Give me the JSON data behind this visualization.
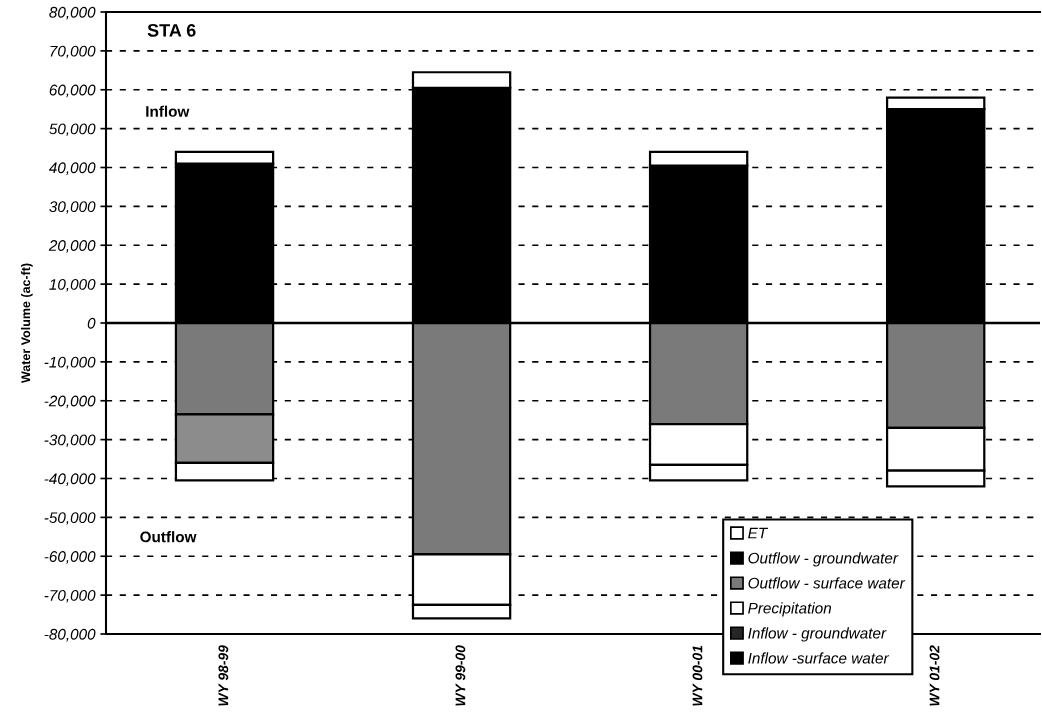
{
  "chart_data": {
    "type": "bar",
    "title": "STA 6",
    "ylabel": "Water Volume (ac-ft)",
    "annotations": [
      "Inflow",
      "Outflow"
    ],
    "categories": [
      "WY 98-99",
      "WY 99-00",
      "WY 00-01",
      "WY 01-02"
    ],
    "stacked": true,
    "series": [
      {
        "name": "Inflow -surface water",
        "color": "#000000",
        "values": [
          41000,
          60500,
          40500,
          55000
        ]
      },
      {
        "name": "Inflow - groundwater",
        "color": "#262626",
        "values": [
          null,
          null,
          null,
          null
        ]
      },
      {
        "name": "Precipitation",
        "color": "#ffffff",
        "values": [
          3000,
          4000,
          3500,
          3000
        ]
      },
      {
        "name": "Outflow - surface water",
        "color": "#7a7a7a",
        "values": [
          -23500,
          -59500,
          -26000,
          -27000
        ]
      },
      {
        "name": "Outflow - groundwater",
        "color": "#000000",
        "colors": [
          "#8c8c8c",
          "#ffffff",
          "#ffffff",
          "#ffffff"
        ],
        "values": [
          -12500,
          -13000,
          -10500,
          -11000
        ]
      },
      {
        "name": "ET",
        "color": "#ffffff",
        "values": [
          -4500,
          -3500,
          -4000,
          -4000
        ]
      }
    ],
    "ylim": [
      -80000,
      80000
    ],
    "yticks": [
      {
        "value": -80000,
        "label": "-80,000"
      },
      {
        "value": -70000,
        "label": "-70,000"
      },
      {
        "value": -60000,
        "label": "-60,000"
      },
      {
        "value": -50000,
        "label": "-50,000"
      },
      {
        "value": -40000,
        "label": "-40,000"
      },
      {
        "value": -30000,
        "label": "-30,000"
      },
      {
        "value": -20000,
        "label": "-20,000"
      },
      {
        "value": -10000,
        "label": "-10,000"
      },
      0,
      {
        "value": 10000,
        "label": "10,000"
      },
      {
        "value": 20000,
        "label": "20,000"
      },
      {
        "value": 30000,
        "label": "30,000"
      },
      {
        "value": 40000,
        "label": "40,000"
      },
      {
        "value": 50000,
        "label": "50,000"
      },
      {
        "value": 60000,
        "label": "60,000"
      },
      {
        "value": 70000,
        "label": "70,000"
      },
      {
        "value": 80000,
        "label": "80,000"
      }
    ],
    "grid": "y",
    "legend": "bottom right",
    "ref_lines": [
      {
        "axis": "y",
        "value": 0,
        "color": "#000000",
        "line_style": "solid"
      }
    ]
  }
}
